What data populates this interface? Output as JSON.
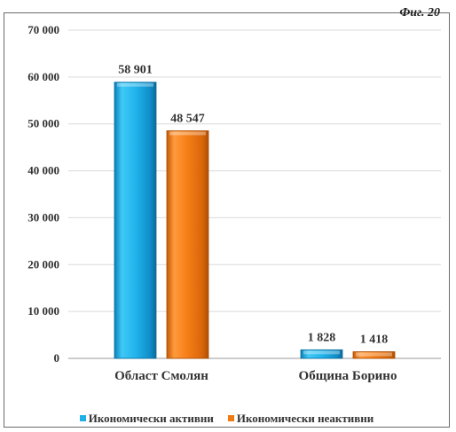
{
  "corner_label": "Фиг. 20",
  "chart_data": {
    "type": "bar",
    "categories": [
      "Област Смолян",
      "Община Борино"
    ],
    "series": [
      {
        "name": "Икономически активни",
        "values": [
          58901,
          1828
        ],
        "labels": [
          "58 901",
          "1 828"
        ],
        "color": "#1fb0e8"
      },
      {
        "name": "Икономически неактивни",
        "values": [
          48547,
          1418
        ],
        "labels": [
          "48 547",
          "1 418"
        ],
        "color": "#f27a12"
      }
    ],
    "ylim": [
      0,
      70000
    ],
    "yticks": [
      0,
      10000,
      20000,
      30000,
      40000,
      50000,
      60000,
      70000
    ],
    "ytick_labels": [
      "0",
      "10 000",
      "20 000",
      "30 000",
      "40 000",
      "50 000",
      "60 000",
      "70 000"
    ],
    "grid": true,
    "legend_position": "bottom"
  }
}
